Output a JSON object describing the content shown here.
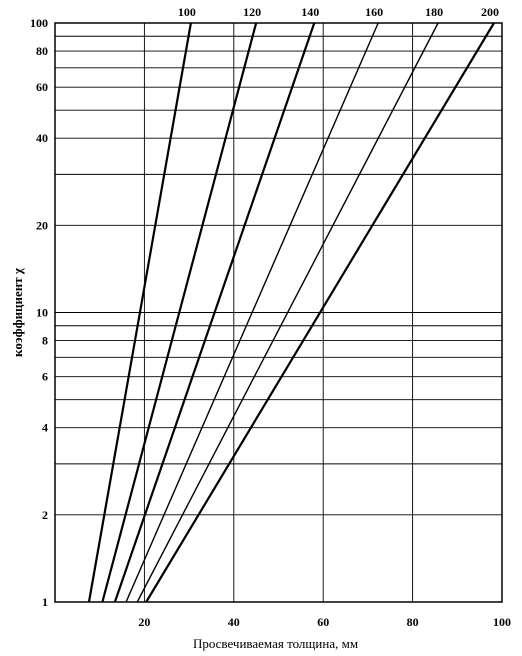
{
  "chart_data": {
    "type": "line",
    "xlabel": "Просвечиваемая толщина, мм",
    "ylabel": "коэффициент χ",
    "xlim": [
      0,
      100
    ],
    "ylim": [
      1,
      100
    ],
    "y_scale": "log",
    "grid": true,
    "x_ticks": [
      20,
      40,
      60,
      80,
      100
    ],
    "y_ticks": [
      1,
      2,
      4,
      6,
      8,
      10,
      20,
      40,
      60,
      80,
      100
    ],
    "x_tick_labels": [
      "20",
      "40",
      "60",
      "80",
      "100"
    ],
    "y_tick_labels": [
      "1",
      "2",
      "4",
      "6",
      "8",
      "10",
      "20",
      "40",
      "60",
      "80",
      "100"
    ],
    "y_grid": [
      1,
      2,
      3,
      4,
      5,
      6,
      7,
      8,
      9,
      10,
      20,
      30,
      40,
      50,
      60,
      70,
      80,
      90,
      100
    ],
    "x_grid": [
      20,
      40,
      60,
      80
    ],
    "series": [
      {
        "name": "100",
        "x": [
          7.6,
          30.4
        ],
        "y": [
          1,
          100
        ]
      },
      {
        "name": "120",
        "x": [
          10.6,
          45.0
        ],
        "y": [
          1,
          100
        ]
      },
      {
        "name": "140",
        "x": [
          13.4,
          58.0
        ],
        "y": [
          1,
          100
        ]
      },
      {
        "name": "160",
        "x": [
          15.9,
          72.3
        ],
        "y": [
          1,
          100
        ]
      },
      {
        "name": "180",
        "x": [
          18.4,
          85.7
        ],
        "y": [
          1,
          100
        ]
      },
      {
        "name": "200",
        "x": [
          20.4,
          98.2
        ],
        "y": [
          1,
          100
        ]
      }
    ]
  }
}
